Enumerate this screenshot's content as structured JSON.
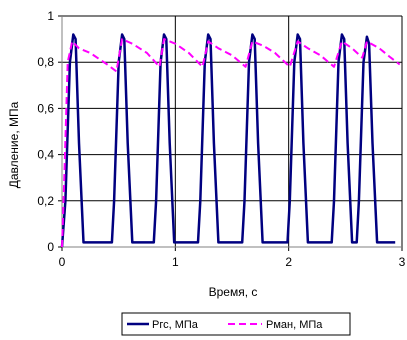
{
  "chart_data": {
    "type": "line",
    "title": "",
    "xlabel": "Время, с",
    "ylabel": "Давление, МПа",
    "xlim": [
      0,
      3
    ],
    "ylim": [
      0,
      1
    ],
    "x_ticks": [
      "0",
      "1",
      "2",
      "3"
    ],
    "y_ticks": [
      "0",
      "0,2",
      "0,4",
      "0,6",
      "0,8",
      "1"
    ],
    "grid": "major gridlines",
    "legend_position": "bottom",
    "series": [
      {
        "name": "Pгс, МПа",
        "color": "#000080",
        "style": "solid",
        "points": [
          [
            0.0,
            0.0
          ],
          [
            0.03,
            0.2
          ],
          [
            0.07,
            0.8
          ],
          [
            0.1,
            0.92
          ],
          [
            0.12,
            0.9
          ],
          [
            0.15,
            0.45
          ],
          [
            0.19,
            0.02
          ],
          [
            0.44,
            0.02
          ],
          [
            0.46,
            0.2
          ],
          [
            0.5,
            0.8
          ],
          [
            0.53,
            0.92
          ],
          [
            0.55,
            0.9
          ],
          [
            0.58,
            0.45
          ],
          [
            0.62,
            0.02
          ],
          [
            0.81,
            0.02
          ],
          [
            0.83,
            0.2
          ],
          [
            0.87,
            0.8
          ],
          [
            0.9,
            0.92
          ],
          [
            0.92,
            0.9
          ],
          [
            0.95,
            0.45
          ],
          [
            0.99,
            0.02
          ],
          [
            1.2,
            0.02
          ],
          [
            1.22,
            0.2
          ],
          [
            1.26,
            0.8
          ],
          [
            1.29,
            0.92
          ],
          [
            1.31,
            0.9
          ],
          [
            1.34,
            0.45
          ],
          [
            1.38,
            0.02
          ],
          [
            1.59,
            0.02
          ],
          [
            1.61,
            0.2
          ],
          [
            1.65,
            0.8
          ],
          [
            1.68,
            0.92
          ],
          [
            1.7,
            0.9
          ],
          [
            1.73,
            0.45
          ],
          [
            1.77,
            0.02
          ],
          [
            1.99,
            0.02
          ],
          [
            2.01,
            0.2
          ],
          [
            2.05,
            0.8
          ],
          [
            2.08,
            0.92
          ],
          [
            2.1,
            0.9
          ],
          [
            2.13,
            0.45
          ],
          [
            2.17,
            0.02
          ],
          [
            2.38,
            0.02
          ],
          [
            2.4,
            0.2
          ],
          [
            2.44,
            0.8
          ],
          [
            2.47,
            0.92
          ],
          [
            2.49,
            0.9
          ],
          [
            2.52,
            0.45
          ],
          [
            2.56,
            0.02
          ],
          [
            2.6,
            0.02
          ],
          [
            2.62,
            0.2
          ],
          [
            2.66,
            0.8
          ],
          [
            2.69,
            0.91
          ],
          [
            2.71,
            0.88
          ],
          [
            2.74,
            0.45
          ],
          [
            2.78,
            0.02
          ],
          [
            2.94,
            0.02
          ]
        ]
      },
      {
        "name": "Pман, МПа",
        "color": "#FF00FF",
        "style": "dashed",
        "points": [
          [
            0.0,
            0.0
          ],
          [
            0.02,
            0.3
          ],
          [
            0.05,
            0.8
          ],
          [
            0.09,
            0.89
          ],
          [
            0.15,
            0.86
          ],
          [
            0.25,
            0.84
          ],
          [
            0.4,
            0.79
          ],
          [
            0.48,
            0.76
          ],
          [
            0.53,
            0.9
          ],
          [
            0.62,
            0.88
          ],
          [
            0.75,
            0.84
          ],
          [
            0.86,
            0.78
          ],
          [
            0.9,
            0.9
          ],
          [
            1.0,
            0.88
          ],
          [
            1.12,
            0.84
          ],
          [
            1.24,
            0.78
          ],
          [
            1.29,
            0.89
          ],
          [
            1.38,
            0.86
          ],
          [
            1.5,
            0.83
          ],
          [
            1.62,
            0.78
          ],
          [
            1.68,
            0.89
          ],
          [
            1.78,
            0.87
          ],
          [
            1.88,
            0.84
          ],
          [
            2.01,
            0.78
          ],
          [
            2.08,
            0.89
          ],
          [
            2.17,
            0.86
          ],
          [
            2.28,
            0.83
          ],
          [
            2.4,
            0.78
          ],
          [
            2.47,
            0.89
          ],
          [
            2.56,
            0.86
          ],
          [
            2.65,
            0.82
          ],
          [
            2.69,
            0.89
          ],
          [
            2.8,
            0.86
          ],
          [
            2.9,
            0.82
          ],
          [
            2.98,
            0.79
          ]
        ]
      }
    ]
  }
}
